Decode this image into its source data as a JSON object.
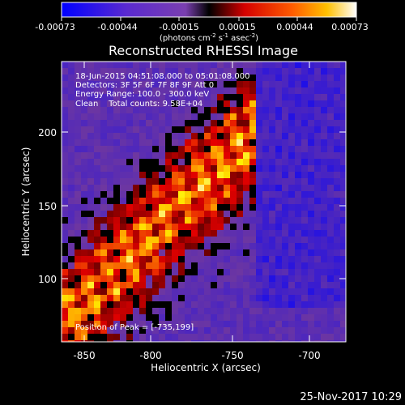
{
  "colorbar": {
    "ticks": [
      "-0.00073",
      "-0.00044",
      "-0.00015",
      "0.00015",
      "0.00044",
      "0.00073"
    ],
    "units_html": "(photons cm<tspan baseline-shift=\"super\" font-size=\"7\">-2</tspan> s<tspan baseline-shift=\"super\" font-size=\"7\">-1</tspan> asec<tspan baseline-shift=\"super\" font-size=\"7\">-2</tspan>)"
  },
  "title": "Reconstructed RHESSI Image",
  "info": {
    "line1": "18-Jun-2015 04:51:08.000 to 05:01:08.000",
    "line2": "Detectors: 3F 5F 6F 7F 8F 9F Att 0",
    "line3": "Energy Range: 100.0 - 300.0 keV",
    "line4": "Clean    Total counts: 9.58E+04"
  },
  "peak_label": "Position of Peak = [-735,199]",
  "x_axis": {
    "label": "Heliocentric X (arcsec)",
    "ticks": [
      "-850",
      "-800",
      "-750",
      "-700"
    ]
  },
  "y_axis": {
    "label": "Heliocentric Y (arcsec)",
    "ticks": [
      "100",
      "150",
      "200"
    ]
  },
  "footer_date": "25-Nov-2017 10:29"
}
